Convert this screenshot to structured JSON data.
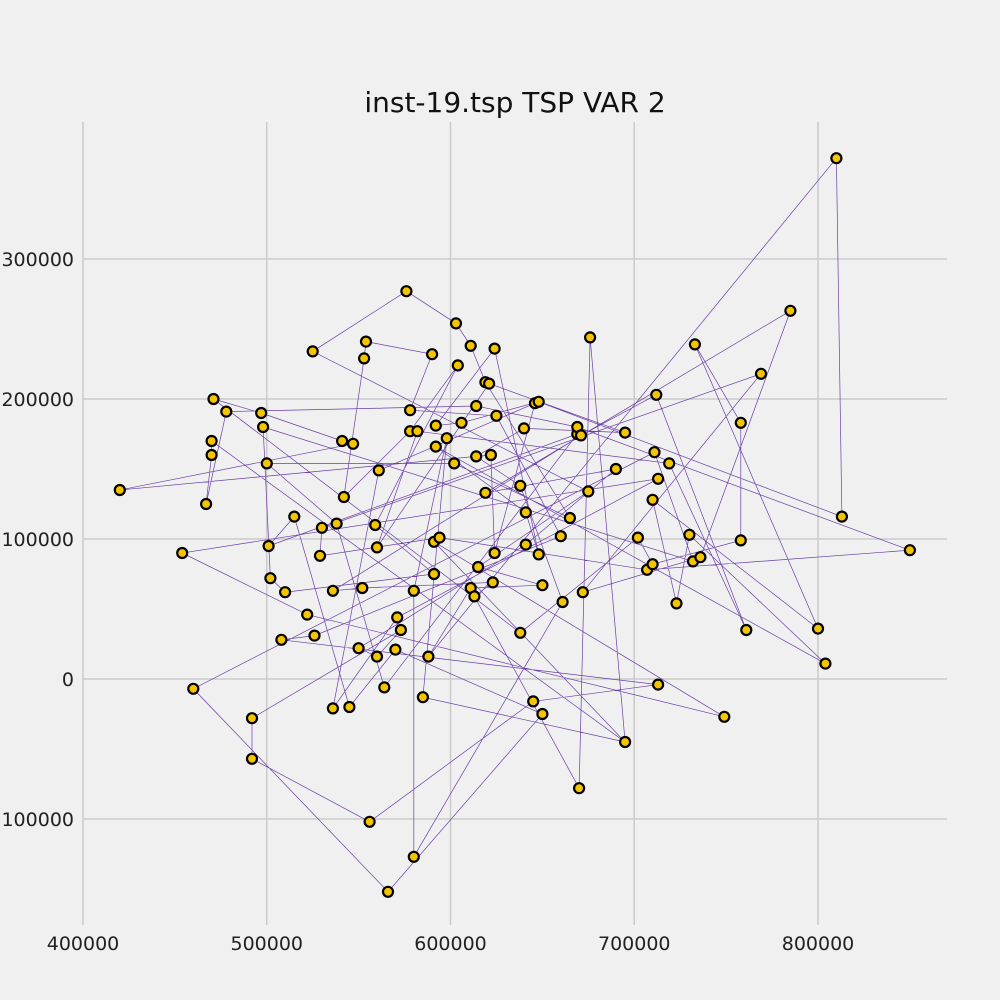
{
  "chart_data": {
    "type": "scatter",
    "title": "inst-19.tsp TSP VAR 2",
    "xlabel": "",
    "ylabel": "",
    "xlim": [
      400000,
      870000
    ],
    "ylim": [
      -170000,
      400000
    ],
    "grid": true,
    "x_ticks": [
      {
        "value": 400000,
        "label": "400000"
      },
      {
        "value": 500000,
        "label": "500000"
      },
      {
        "value": 600000,
        "label": "600000"
      },
      {
        "value": 700000,
        "label": "700000"
      },
      {
        "value": 800000,
        "label": "800000"
      }
    ],
    "y_ticks": [
      {
        "value": 300000,
        "label": "300000"
      },
      {
        "value": 200000,
        "label": "200000"
      },
      {
        "value": 100000,
        "label": "100000"
      },
      {
        "value": 0,
        "label": "0"
      },
      {
        "value": -100000,
        "label": "100000"
      }
    ],
    "colors": {
      "point_fill": "#f5c400",
      "point_edge": "#000000",
      "route_line": "#6a3fa8",
      "grid": "#cbcbcb",
      "background": "#f0f0f0"
    },
    "cities": [
      [
        420000,
        135000
      ],
      [
        454000,
        90000
      ],
      [
        460000,
        -7000
      ],
      [
        467000,
        125000
      ],
      [
        470000,
        160000
      ],
      [
        470000,
        170000
      ],
      [
        471000,
        200000
      ],
      [
        478000,
        191000
      ],
      [
        492000,
        -28000
      ],
      [
        492000,
        -57000
      ],
      [
        497000,
        190000
      ],
      [
        498000,
        180000
      ],
      [
        500000,
        154000
      ],
      [
        501000,
        95000
      ],
      [
        502000,
        72000
      ],
      [
        510000,
        62000
      ],
      [
        508000,
        28000
      ],
      [
        515000,
        116000
      ],
      [
        522000,
        46000
      ],
      [
        525000,
        234000
      ],
      [
        526000,
        31000
      ],
      [
        529000,
        88000
      ],
      [
        530000,
        108000
      ],
      [
        536000,
        63000
      ],
      [
        536000,
        -21000
      ],
      [
        538000,
        111000
      ],
      [
        541000,
        170000
      ],
      [
        542000,
        130000
      ],
      [
        545000,
        -20000
      ],
      [
        547000,
        168000
      ],
      [
        550000,
        22000
      ],
      [
        552000,
        65000
      ],
      [
        553000,
        229000
      ],
      [
        554000,
        241000
      ],
      [
        556000,
        -102000
      ],
      [
        559000,
        110000
      ],
      [
        560000,
        16000
      ],
      [
        560000,
        94000
      ],
      [
        561000,
        149000
      ],
      [
        564000,
        -6000
      ],
      [
        566000,
        -152000
      ],
      [
        570000,
        21000
      ],
      [
        571000,
        44000
      ],
      [
        573000,
        35000
      ],
      [
        576000,
        277000
      ],
      [
        578000,
        192000
      ],
      [
        578000,
        177000
      ],
      [
        580000,
        -127000
      ],
      [
        580000,
        63000
      ],
      [
        582000,
        177000
      ],
      [
        585000,
        -13000
      ],
      [
        588000,
        16000
      ],
      [
        590000,
        232000
      ],
      [
        591000,
        98000
      ],
      [
        591000,
        75000
      ],
      [
        592000,
        181000
      ],
      [
        592000,
        166000
      ],
      [
        594000,
        101000
      ],
      [
        598000,
        172000
      ],
      [
        602000,
        154000
      ],
      [
        603000,
        254000
      ],
      [
        604000,
        224000
      ],
      [
        606000,
        183000
      ],
      [
        611000,
        65000
      ],
      [
        611000,
        238000
      ],
      [
        613000,
        59000
      ],
      [
        614000,
        195000
      ],
      [
        614000,
        159000
      ],
      [
        615000,
        80000
      ],
      [
        619000,
        133000
      ],
      [
        619000,
        212000
      ],
      [
        621000,
        211000
      ],
      [
        622000,
        160000
      ],
      [
        623000,
        69000
      ],
      [
        624000,
        236000
      ],
      [
        624000,
        90000
      ],
      [
        625000,
        188000
      ],
      [
        638000,
        33000
      ],
      [
        638000,
        138000
      ],
      [
        640000,
        179000
      ],
      [
        641000,
        119000
      ],
      [
        641000,
        96000
      ],
      [
        645000,
        -16000
      ],
      [
        646000,
        197000
      ],
      [
        648000,
        89000
      ],
      [
        648000,
        198000
      ],
      [
        650000,
        -25000
      ],
      [
        650000,
        67000
      ],
      [
        660000,
        102000
      ],
      [
        661000,
        55000
      ],
      [
        665000,
        115000
      ],
      [
        669000,
        175000
      ],
      [
        669000,
        180000
      ],
      [
        670000,
        -78000
      ],
      [
        671000,
        174000
      ],
      [
        672000,
        62000
      ],
      [
        675000,
        134000
      ],
      [
        676000,
        244000
      ],
      [
        690000,
        150000
      ],
      [
        695000,
        176000
      ],
      [
        695000,
        -45000
      ],
      [
        702000,
        101000
      ],
      [
        707000,
        78000
      ],
      [
        710000,
        82000
      ],
      [
        710000,
        128000
      ],
      [
        711000,
        162000
      ],
      [
        712000,
        203000
      ],
      [
        713000,
        -4000
      ],
      [
        713000,
        143000
      ],
      [
        719000,
        154000
      ],
      [
        723000,
        54000
      ],
      [
        730000,
        103000
      ],
      [
        732000,
        84000
      ],
      [
        733000,
        239000
      ],
      [
        736000,
        87000
      ],
      [
        749000,
        -27000
      ],
      [
        758000,
        183000
      ],
      [
        758000,
        99000
      ],
      [
        761000,
        35000
      ],
      [
        769000,
        218000
      ],
      [
        785000,
        263000
      ],
      [
        800000,
        36000
      ],
      [
        804000,
        11000
      ],
      [
        810000,
        372000
      ],
      [
        813000,
        116000
      ],
      [
        850000,
        92000
      ]
    ],
    "tour": [
      0,
      29,
      26,
      10,
      6,
      77,
      101,
      103,
      117,
      116,
      113,
      121,
      104,
      110,
      111,
      122,
      56,
      80,
      84,
      74,
      55,
      62,
      85,
      124,
      123,
      51,
      63,
      87,
      68,
      96,
      19,
      44,
      60,
      64,
      70,
      90,
      59,
      12,
      25,
      39,
      91,
      13,
      17,
      28,
      41,
      86,
      40,
      2,
      105,
      112,
      11,
      14,
      15,
      54,
      35,
      61,
      46,
      27,
      32,
      33,
      52,
      45,
      76,
      88,
      20,
      16,
      107,
      82,
      34,
      9,
      8,
      43,
      36,
      30,
      81,
      98,
      69,
      120,
      114,
      95,
      119,
      22,
      21,
      57,
      102,
      125,
      126,
      92,
      66,
      7,
      3,
      4,
      5,
      100,
      97,
      93,
      65,
      73,
      31,
      23,
      94,
      106,
      118,
      109,
      49,
      37,
      71,
      99,
      79,
      67,
      78,
      89,
      47,
      48,
      58,
      50,
      100,
      53,
      115,
      18,
      1,
      108,
      42,
      24,
      38,
      83,
      75,
      72,
      0
    ]
  }
}
